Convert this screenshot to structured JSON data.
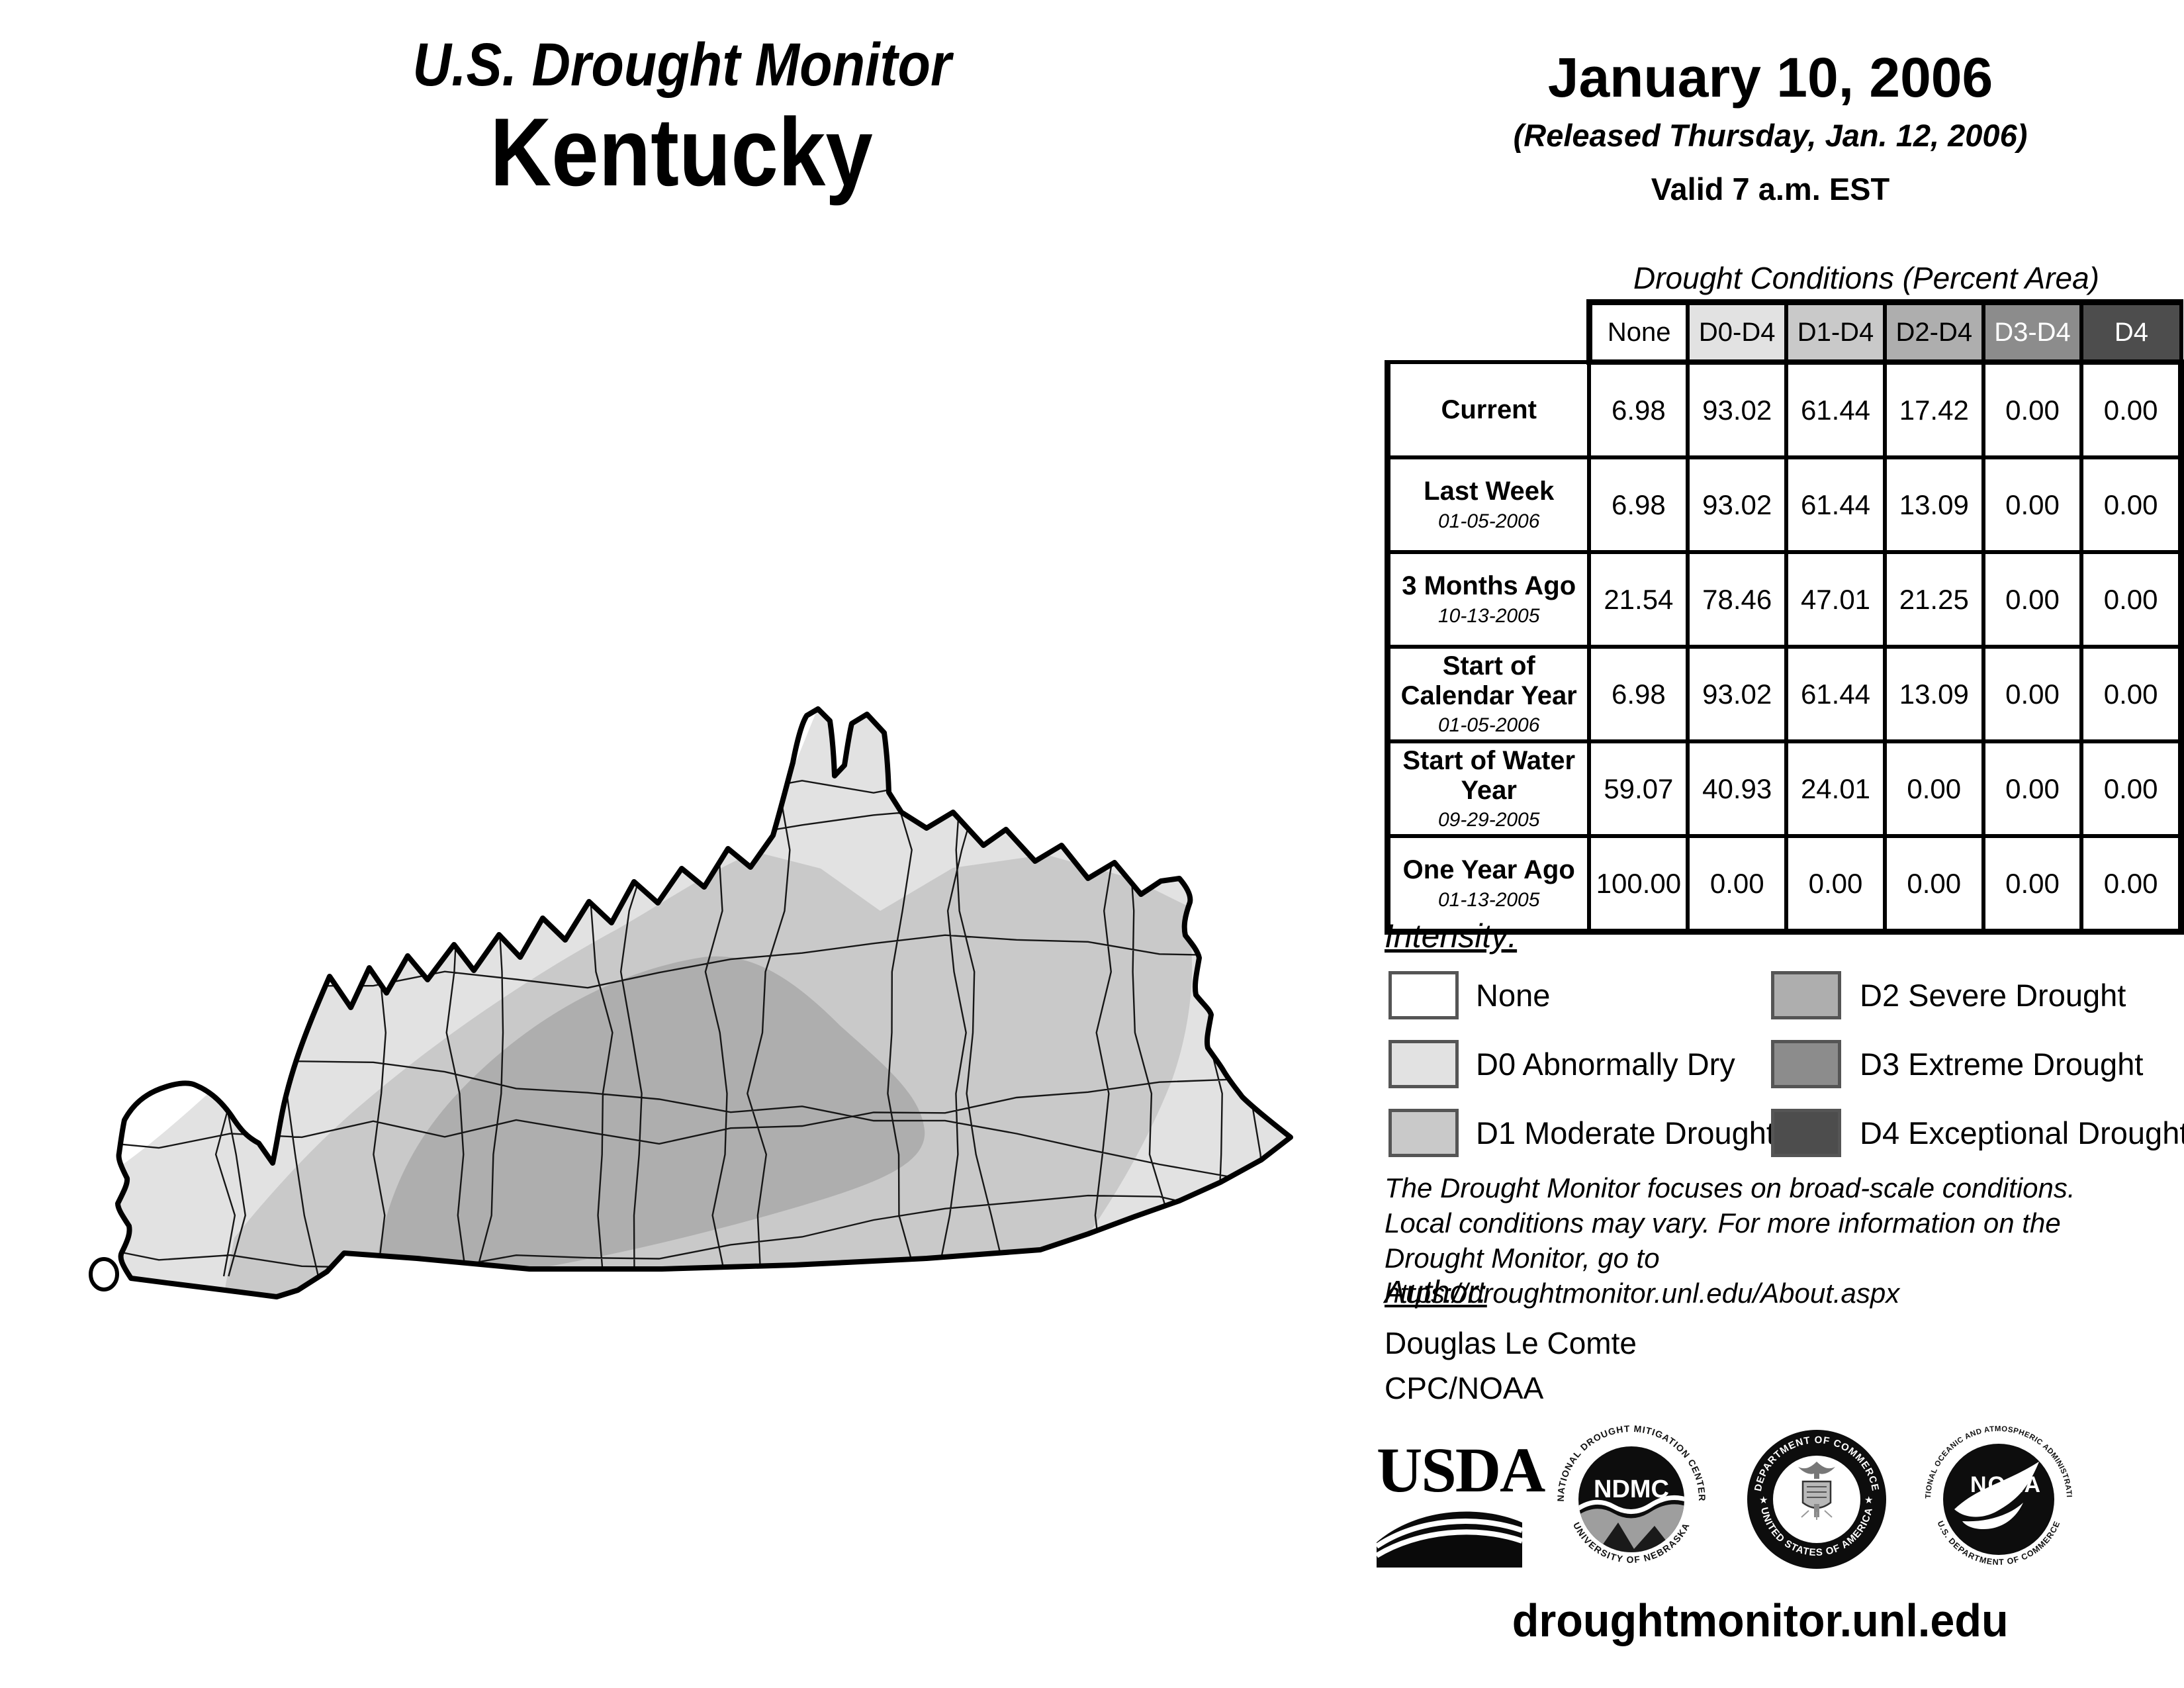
{
  "title": {
    "line1": "U.S. Drought Monitor",
    "line2": "Kentucky"
  },
  "date_block": {
    "date": "January 10, 2006",
    "released": "(Released Thursday, Jan. 12, 2006)",
    "valid": "Valid 7 a.m. EST"
  },
  "table": {
    "title": "Drought Conditions (Percent Area)",
    "columns": [
      "None",
      "D0-D4",
      "D1-D4",
      "D2-D4",
      "D3-D4",
      "D4"
    ],
    "rows": [
      {
        "label": "Current",
        "date": "",
        "values": [
          "6.98",
          "93.02",
          "61.44",
          "17.42",
          "0.00",
          "0.00"
        ]
      },
      {
        "label": "Last Week",
        "date": "01-05-2006",
        "values": [
          "6.98",
          "93.02",
          "61.44",
          "13.09",
          "0.00",
          "0.00"
        ]
      },
      {
        "label": "3 Months Ago",
        "date": "10-13-2005",
        "values": [
          "21.54",
          "78.46",
          "47.01",
          "21.25",
          "0.00",
          "0.00"
        ]
      },
      {
        "label": "Start of Calendar Year",
        "date": "01-05-2006",
        "values": [
          "6.98",
          "93.02",
          "61.44",
          "13.09",
          "0.00",
          "0.00"
        ]
      },
      {
        "label": "Start of Water Year",
        "date": "09-29-2005",
        "values": [
          "59.07",
          "40.93",
          "24.01",
          "0.00",
          "0.00",
          "0.00"
        ]
      },
      {
        "label": "One Year Ago",
        "date": "01-13-2005",
        "values": [
          "100.00",
          "0.00",
          "0.00",
          "0.00",
          "0.00",
          "0.00"
        ]
      }
    ]
  },
  "intensity": {
    "heading": "Intensity:",
    "items": [
      {
        "code": "none",
        "label": "None",
        "color": "#ffffff"
      },
      {
        "code": "d0",
        "label": "D0 Abnormally Dry",
        "color": "#e2e2e2"
      },
      {
        "code": "d1",
        "label": "D1 Moderate Drought",
        "color": "#c9c9c9"
      },
      {
        "code": "d2",
        "label": "D2 Severe Drought",
        "color": "#aeaeae"
      },
      {
        "code": "d3",
        "label": "D3 Extreme Drought",
        "color": "#8c8c8c"
      },
      {
        "code": "d4",
        "label": "D4 Exceptional Drought",
        "color": "#4d4d4d"
      }
    ]
  },
  "disclaimer": {
    "line1": "The Drought Monitor focuses on broad-scale conditions.",
    "line2": "Local conditions may vary. For more information on the",
    "line3": "Drought Monitor, go to https://droughtmonitor.unl.edu/About.aspx"
  },
  "author": {
    "heading": "Author:",
    "name": "Douglas Le Comte",
    "org": "CPC/NOAA"
  },
  "logos": {
    "usda": "USDA",
    "ndmc": {
      "top": "NATIONAL DROUGHT MITIGATION CENTER",
      "center": "NDMC",
      "bottom": "UNIVERSITY OF NEBRASKA"
    },
    "doc": {
      "top": "DEPARTMENT OF COMMERCE",
      "bottom": "UNITED STATES OF AMERICA"
    },
    "noaa": {
      "top": "NATIONAL OCEANIC AND ATMOSPHERIC ADMINISTRATION",
      "center": "NOAA",
      "bottom": "U.S. DEPARTMENT OF COMMERCE"
    }
  },
  "footer": {
    "url": "droughtmonitor.unl.edu"
  },
  "map": {
    "region": "Kentucky",
    "none_color": "#ffffff",
    "d0_color": "#e2e2e2",
    "d1_color": "#c9c9c9",
    "d2_color": "#aeaeae"
  },
  "chart_data": {
    "type": "table",
    "title": "Drought Conditions (Percent Area)",
    "categories": [
      "None",
      "D0-D4",
      "D1-D4",
      "D2-D4",
      "D3-D4",
      "D4"
    ],
    "series": [
      {
        "name": "Current",
        "values": [
          6.98,
          93.02,
          61.44,
          17.42,
          0.0,
          0.0
        ]
      },
      {
        "name": "Last Week 01-05-2006",
        "values": [
          6.98,
          93.02,
          61.44,
          13.09,
          0.0,
          0.0
        ]
      },
      {
        "name": "3 Months Ago 10-13-2005",
        "values": [
          21.54,
          78.46,
          47.01,
          21.25,
          0.0,
          0.0
        ]
      },
      {
        "name": "Start of Calendar Year 01-05-2006",
        "values": [
          6.98,
          93.02,
          61.44,
          13.09,
          0.0,
          0.0
        ]
      },
      {
        "name": "Start of Water Year 09-29-2005",
        "values": [
          59.07,
          40.93,
          24.01,
          0.0,
          0.0,
          0.0
        ]
      },
      {
        "name": "One Year Ago 01-13-2005",
        "values": [
          100.0,
          0.0,
          0.0,
          0.0,
          0.0,
          0.0
        ]
      }
    ]
  }
}
